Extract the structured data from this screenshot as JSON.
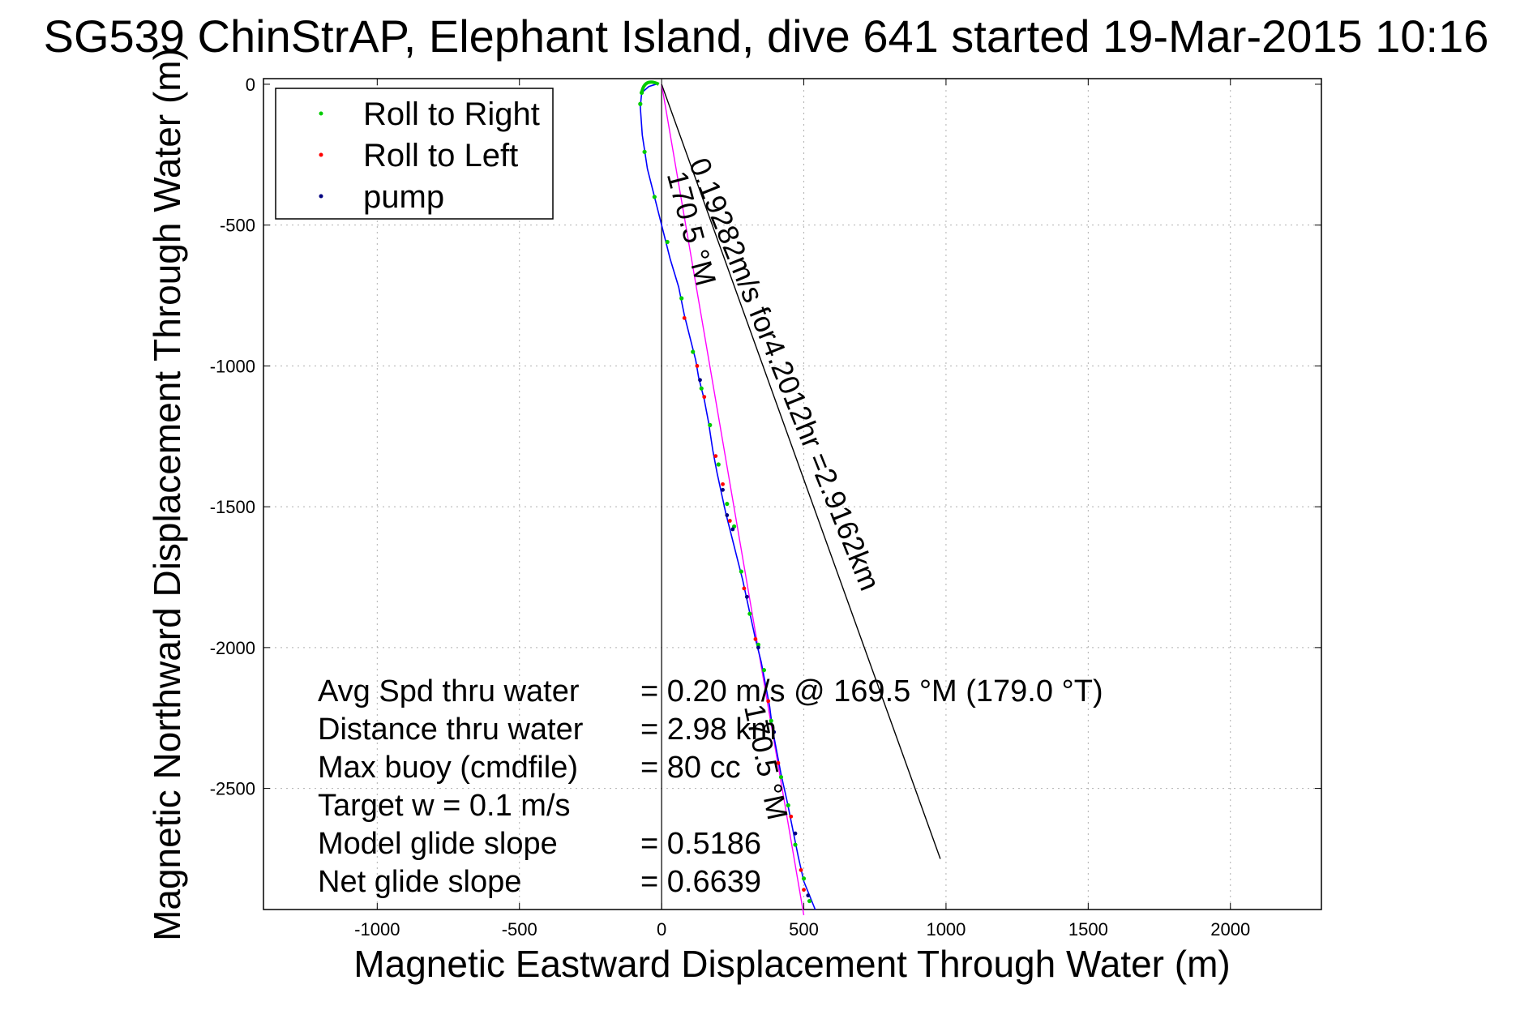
{
  "chart_data": {
    "type": "scatter",
    "title": "SG539 ChinStrAP, Elephant Island, dive 641 started 19-Mar-2015 10:16",
    "xlabel": "Magnetic Eastward Displacement Through Water (m)",
    "ylabel": "Magnetic Northward Displacement Through Water (m)",
    "xlim": [
      -1400,
      2320
    ],
    "ylim": [
      -2930,
      20
    ],
    "x_ticks": [
      -1000,
      -500,
      0,
      500,
      1000,
      1500,
      2000
    ],
    "x_tick_labels": [
      "-1000",
      "-500",
      "0",
      "500",
      "1000",
      "1500",
      "2000"
    ],
    "y_ticks": [
      0,
      -500,
      -1000,
      -1500,
      -2000,
      -2500
    ],
    "y_tick_labels": [
      "0",
      "-500",
      "-1000",
      "-1500",
      "-2000",
      "-2500"
    ],
    "grid": true,
    "legend_position": "top-left",
    "legend": [
      {
        "label": "Roll to Right",
        "color": "#00cc00"
      },
      {
        "label": "Roll to Left",
        "color": "#ff0000"
      },
      {
        "label": "pump",
        "color": "#000080"
      }
    ],
    "track": {
      "color": "#0000ff",
      "points": [
        [
          -20,
          0
        ],
        [
          -45,
          -8
        ],
        [
          -70,
          -30
        ],
        [
          -75,
          -80
        ],
        [
          -68,
          -180
        ],
        [
          -50,
          -300
        ],
        [
          -20,
          -420
        ],
        [
          0,
          -500
        ],
        [
          30,
          -620
        ],
        [
          60,
          -720
        ],
        [
          80,
          -820
        ],
        [
          100,
          -900
        ],
        [
          120,
          -980
        ],
        [
          130,
          -1040
        ],
        [
          150,
          -1120
        ],
        [
          165,
          -1200
        ],
        [
          180,
          -1300
        ],
        [
          195,
          -1380
        ],
        [
          210,
          -1450
        ],
        [
          225,
          -1520
        ],
        [
          245,
          -1600
        ],
        [
          265,
          -1680
        ],
        [
          285,
          -1760
        ],
        [
          300,
          -1830
        ],
        [
          315,
          -1900
        ],
        [
          330,
          -1970
        ],
        [
          350,
          -2050
        ],
        [
          365,
          -2130
        ],
        [
          380,
          -2210
        ],
        [
          390,
          -2290
        ],
        [
          405,
          -2370
        ],
        [
          420,
          -2450
        ],
        [
          440,
          -2540
        ],
        [
          460,
          -2640
        ],
        [
          480,
          -2740
        ],
        [
          500,
          -2830
        ],
        [
          540,
          -2950
        ]
      ]
    },
    "roll_right_points": [
      [
        -70,
        -30
      ],
      [
        -75,
        -70
      ],
      [
        -60,
        -240
      ],
      [
        -25,
        -400
      ],
      [
        20,
        -560
      ],
      [
        70,
        -760
      ],
      [
        110,
        -950
      ],
      [
        140,
        -1080
      ],
      [
        170,
        -1210
      ],
      [
        200,
        -1350
      ],
      [
        230,
        -1490
      ],
      [
        255,
        -1570
      ],
      [
        280,
        -1730
      ],
      [
        310,
        -1880
      ],
      [
        340,
        -1990
      ],
      [
        360,
        -2080
      ],
      [
        385,
        -2260
      ],
      [
        420,
        -2460
      ],
      [
        445,
        -2560
      ],
      [
        470,
        -2700
      ],
      [
        500,
        -2820
      ],
      [
        520,
        -2900
      ]
    ],
    "roll_left_points": [
      [
        80,
        -830
      ],
      [
        125,
        -1000
      ],
      [
        150,
        -1110
      ],
      [
        190,
        -1320
      ],
      [
        215,
        -1420
      ],
      [
        240,
        -1550
      ],
      [
        290,
        -1790
      ],
      [
        330,
        -1970
      ],
      [
        375,
        -2190
      ],
      [
        410,
        -2410
      ],
      [
        455,
        -2600
      ],
      [
        490,
        -2790
      ],
      [
        500,
        -2860
      ]
    ],
    "pump_points": [
      [
        135,
        -1050
      ],
      [
        215,
        -1440
      ],
      [
        230,
        -1530
      ],
      [
        250,
        -1580
      ],
      [
        300,
        -1820
      ],
      [
        340,
        -2000
      ],
      [
        395,
        -2300
      ],
      [
        470,
        -2660
      ],
      [
        515,
        -2880
      ]
    ],
    "lines": [
      {
        "name": "heading",
        "color": "#ff00ff",
        "from": [
          0,
          0
        ],
        "to": [
          500,
          -2950
        ]
      },
      {
        "name": "current",
        "color": "#000000",
        "from": [
          0,
          0
        ],
        "to": [
          980,
          -2750
        ]
      }
    ],
    "annotations": [
      {
        "text": "0.19282m/s for4.2012hr =2.9162km",
        "x": 95,
        "y": -280,
        "angle": 68
      },
      {
        "text": "170.5 °M",
        "x": 18,
        "y": -320,
        "angle": 75
      },
      {
        "text": "170.5 °M",
        "x": 290,
        "y": -2210,
        "angle": 78
      }
    ],
    "stats": [
      {
        "label": "Avg Spd thru water",
        "value": "=  0.20 m/s @ 169.5 °M (179.0 °T)"
      },
      {
        "label": "Distance thru water",
        "value": "=  2.98 km"
      },
      {
        "label": "Max buoy (cmdfile)",
        "value": "= 80 cc"
      },
      {
        "label": "Target w    = 0.1 m/s",
        "value": ""
      },
      {
        "label": "Model glide slope",
        "value": "= 0.5186"
      },
      {
        "label": "Net glide slope",
        "value": "= 0.6639"
      }
    ]
  }
}
